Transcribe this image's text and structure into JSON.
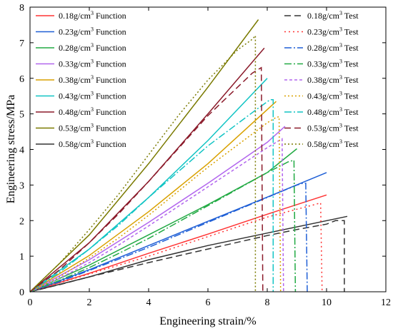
{
  "chart_data": {
    "type": "line",
    "title": "",
    "xlabel": "Engineering strain/%",
    "ylabel": "Engineering stress/MPa",
    "xlim": [
      0,
      12
    ],
    "ylim": [
      0,
      8
    ],
    "xticks": [
      0,
      2,
      4,
      6,
      8,
      10,
      12
    ],
    "yticks": [
      0,
      1,
      2,
      3,
      4,
      5,
      6,
      7,
      8
    ],
    "grid": false,
    "legend_placement": "top-left and top-right",
    "series": [
      {
        "name": "0.18g/cm3 Function",
        "label": "0.18g/cm",
        "sup": "3",
        "suffix": " Function",
        "color": "#ff3333",
        "dash": "solid",
        "group": "function",
        "x": [
          0,
          2,
          4,
          6,
          8,
          10
        ],
        "y": [
          0,
          0.52,
          1.08,
          1.62,
          2.18,
          2.72
        ]
      },
      {
        "name": "0.23g/cm3 Function",
        "label": "0.23g/cm",
        "sup": "3",
        "suffix": " Function",
        "color": "#1f5fd6",
        "dash": "solid",
        "group": "function",
        "x": [
          0,
          2,
          4,
          6,
          8,
          10
        ],
        "y": [
          0,
          0.62,
          1.3,
          1.98,
          2.66,
          3.35
        ]
      },
      {
        "name": "0.28g/cm3 Function",
        "label": "0.28g/cm",
        "sup": "3",
        "suffix": " Function",
        "color": "#22aa44",
        "dash": "solid",
        "group": "function",
        "x": [
          0,
          2,
          4,
          6,
          8,
          9
        ],
        "y": [
          0,
          0.75,
          1.6,
          2.45,
          3.35,
          4.02
        ]
      },
      {
        "name": "0.33g/cm3 Function",
        "label": "0.33g/cm",
        "sup": "3",
        "suffix": " Function",
        "color": "#b266ee",
        "dash": "solid",
        "group": "function",
        "x": [
          0,
          2,
          4,
          6,
          8,
          8.6
        ],
        "y": [
          0,
          0.9,
          1.95,
          3.05,
          4.2,
          4.65
        ]
      },
      {
        "name": "0.38g/cm3 Function",
        "label": "0.38g/cm",
        "sup": "3",
        "suffix": " Function",
        "color": "#d9a100",
        "dash": "solid",
        "group": "function",
        "x": [
          0,
          2,
          4,
          6,
          8.3
        ],
        "y": [
          0,
          1.02,
          2.25,
          3.6,
          5.35
        ]
      },
      {
        "name": "0.43g/cm3 Function",
        "label": "0.43g/cm",
        "sup": "3",
        "suffix": " Function",
        "color": "#11c4c4",
        "dash": "solid",
        "group": "function",
        "x": [
          0,
          2,
          4,
          6,
          8
        ],
        "y": [
          0,
          1.2,
          2.65,
          4.25,
          6.0
        ]
      },
      {
        "name": "0.48g/cm3 Function",
        "label": "0.48g/cm",
        "sup": "3",
        "suffix": " Function",
        "color": "#8b1a2a",
        "dash": "solid",
        "group": "function",
        "x": [
          0,
          2,
          4,
          6,
          7.9
        ],
        "y": [
          0,
          1.38,
          3.1,
          5.0,
          6.85
        ]
      },
      {
        "name": "0.53g/cm3 Function",
        "label": "0.53g/cm",
        "sup": "3",
        "suffix": " Function",
        "color": "#7a7a00",
        "dash": "solid",
        "group": "function",
        "x": [
          0,
          2,
          4,
          6,
          7.7
        ],
        "y": [
          0,
          1.6,
          3.6,
          5.75,
          7.65
        ]
      },
      {
        "name": "0.58g/cm3 Function",
        "label": "0.58g/cm",
        "sup": "3",
        "suffix": " Function",
        "color": "#333333",
        "dash": "solid",
        "group": "function",
        "x": [
          0,
          2,
          4,
          6,
          8,
          10.7
        ],
        "y": [
          0,
          0.42,
          0.9,
          1.3,
          1.65,
          2.12
        ]
      },
      {
        "name": "0.18g/cm3 Test",
        "label": "0.18g/cm",
        "sup": "3",
        "suffix": " Test",
        "color": "#333333",
        "dash": "9,5",
        "group": "test",
        "x": [
          0,
          1,
          2,
          3,
          4,
          6,
          8,
          9,
          10,
          10.3,
          10.6,
          10.6
        ],
        "y": [
          0,
          0.2,
          0.42,
          0.62,
          0.82,
          1.2,
          1.58,
          1.75,
          1.9,
          2.0,
          2.0,
          0
        ]
      },
      {
        "name": "0.23g/cm3 Test",
        "label": "0.23g/cm",
        "sup": "3",
        "suffix": " Test",
        "color": "#ff3333",
        "dash": "2,4",
        "group": "test",
        "x": [
          0,
          1,
          2,
          3,
          4,
          6,
          8,
          9,
          9.6,
          9.8,
          9.85
        ],
        "y": [
          0,
          0.25,
          0.5,
          0.75,
          1.0,
          1.55,
          2.1,
          2.32,
          2.45,
          2.5,
          0
        ]
      },
      {
        "name": "0.28g/cm3 Test",
        "label": "0.28g/cm",
        "sup": "3",
        "suffix": " Test",
        "color": "#1f5fd6",
        "dash": "10,3,2,3",
        "group": "test",
        "x": [
          0,
          1,
          2,
          3,
          4,
          6,
          8,
          9,
          9.2,
          9.3,
          9.35
        ],
        "y": [
          0,
          0.28,
          0.6,
          0.92,
          1.25,
          1.95,
          2.65,
          3.0,
          3.05,
          3.05,
          0
        ]
      },
      {
        "name": "0.33g/cm3 Test",
        "label": "0.33g/cm",
        "sup": "3",
        "suffix": " Test",
        "color": "#22aa44",
        "dash": "10,3,2,3",
        "group": "test",
        "x": [
          0,
          1,
          2,
          3,
          4,
          6,
          8,
          8.7,
          8.9,
          8.95
        ],
        "y": [
          0,
          0.32,
          0.68,
          1.08,
          1.5,
          2.42,
          3.35,
          3.65,
          3.7,
          0
        ]
      },
      {
        "name": "0.38g/cm3 Test",
        "label": "0.38g/cm",
        "sup": "3",
        "suffix": " Test",
        "color": "#b266ee",
        "dash": "4,3",
        "group": "test",
        "x": [
          0,
          1,
          2,
          3,
          4,
          6,
          8,
          8.4,
          8.5,
          8.55
        ],
        "y": [
          0,
          0.38,
          0.82,
          1.32,
          1.85,
          2.95,
          4.05,
          4.25,
          4.3,
          0
        ]
      },
      {
        "name": "0.43g/cm3 Test",
        "label": "0.43g/cm",
        "sup": "3",
        "suffix": " Test",
        "color": "#d9a100",
        "dash": "2,3",
        "group": "test",
        "x": [
          0,
          1,
          2,
          3,
          4,
          6,
          8,
          8.3,
          8.4,
          8.45
        ],
        "y": [
          0,
          0.42,
          0.95,
          1.52,
          2.15,
          3.5,
          4.75,
          4.9,
          4.92,
          0
        ]
      },
      {
        "name": "0.48g/cm3 Test",
        "label": "0.48g/cm",
        "sup": "3",
        "suffix": " Test",
        "color": "#11c4c4",
        "dash": "10,3,2,3",
        "group": "test",
        "x": [
          0,
          1,
          2,
          3,
          4,
          6,
          7.6,
          8.1,
          8.2,
          8.2
        ],
        "y": [
          0,
          0.55,
          1.2,
          1.88,
          2.65,
          4.1,
          5.1,
          5.4,
          5.4,
          0
        ]
      },
      {
        "name": "0.53g/cm3 Test",
        "label": "0.53g/cm",
        "sup": "3",
        "suffix": " Test",
        "color": "#8b1a2a",
        "dash": "9,5",
        "group": "test",
        "x": [
          0,
          1,
          2,
          3,
          4,
          6,
          7,
          7.5,
          7.8,
          7.85
        ],
        "y": [
          0,
          0.62,
          1.38,
          2.2,
          3.1,
          4.95,
          5.75,
          6.15,
          6.3,
          0
        ]
      },
      {
        "name": "0.58g/cm3 Test",
        "label": "0.58g/cm",
        "sup": "3",
        "suffix": " Test",
        "color": "#7a7a00",
        "dash": "2,3",
        "group": "test",
        "x": [
          0,
          1,
          2,
          3,
          4,
          5,
          6,
          7,
          7.5,
          7.6,
          7.6
        ],
        "y": [
          0,
          0.8,
          1.75,
          2.75,
          3.85,
          4.95,
          5.95,
          6.8,
          7.1,
          7.2,
          0
        ]
      }
    ]
  }
}
